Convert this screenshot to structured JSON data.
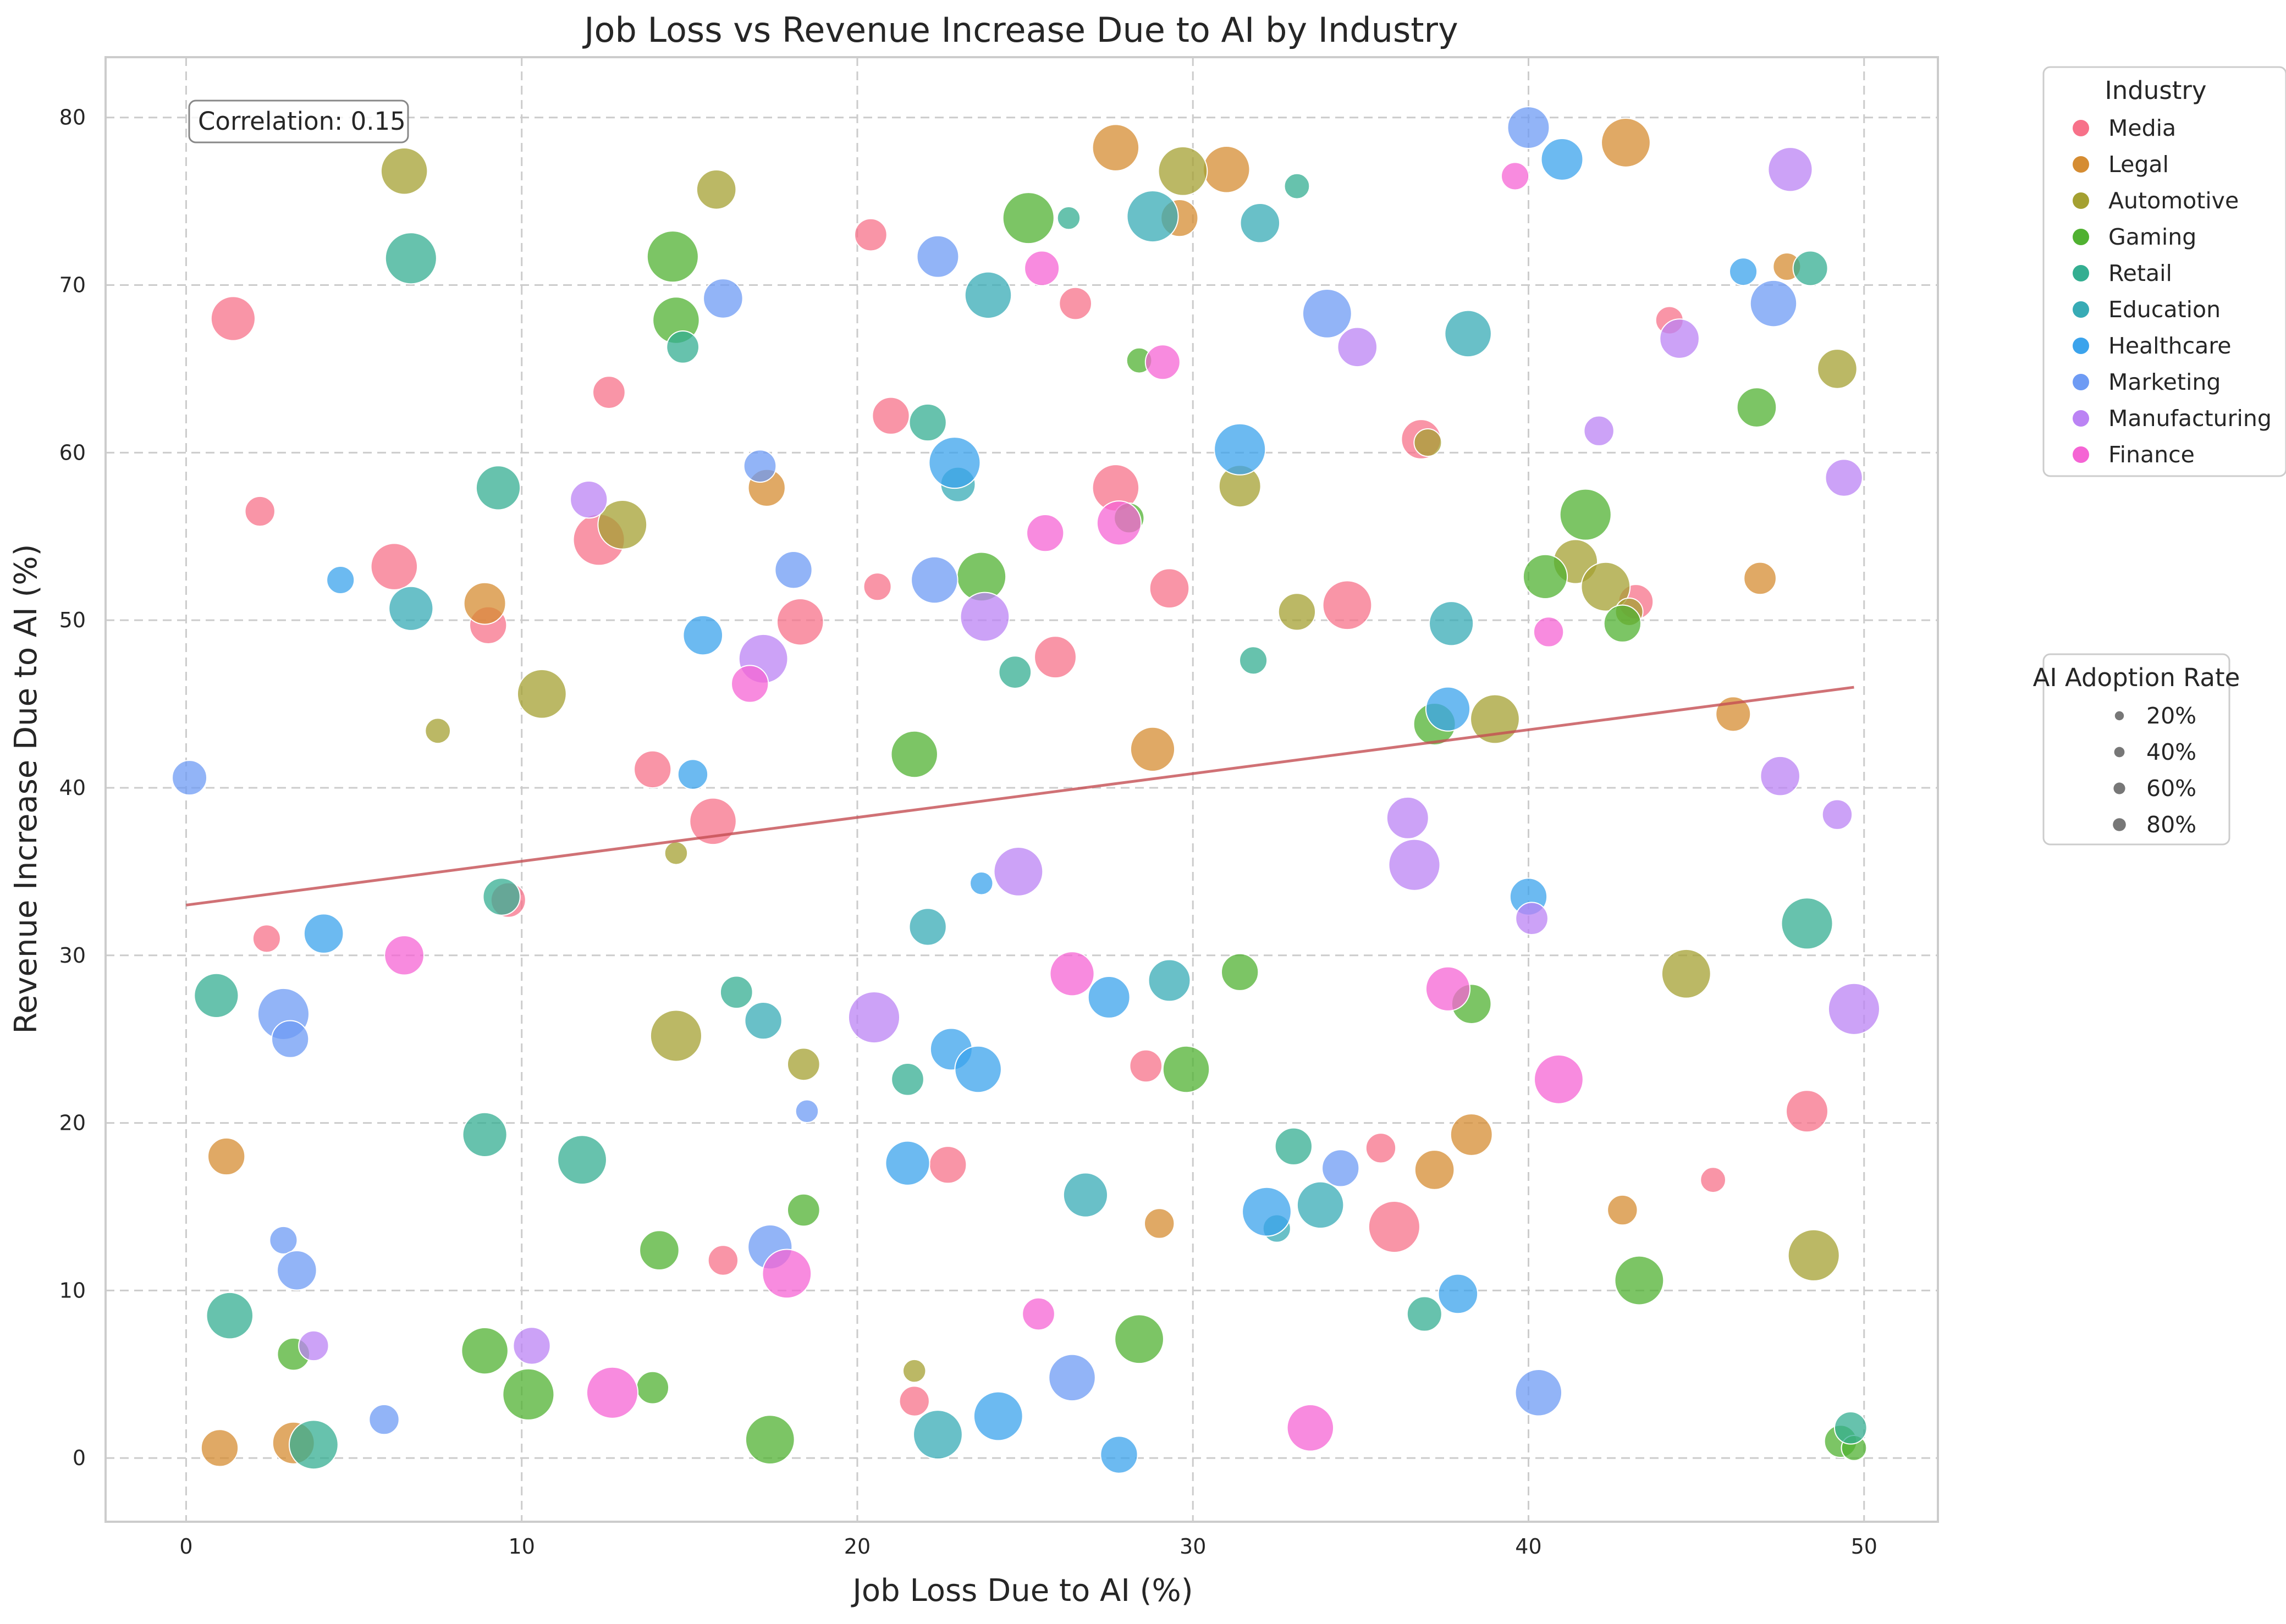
{
  "chart_data": {
    "type": "scatter",
    "title": "Job Loss vs Revenue Increase Due to AI by Industry",
    "xlabel": "Job Loss Due to AI (%)",
    "ylabel": "Revenue Increase Due to AI (%)",
    "xlim": [
      -2.4,
      52.2
    ],
    "ylim": [
      -3.8,
      83.6
    ],
    "xticks": [
      0,
      10,
      20,
      30,
      40,
      50
    ],
    "yticks": [
      0,
      10,
      20,
      30,
      40,
      50,
      60,
      70,
      80
    ],
    "grid": true,
    "annotation": "Correlation: 0.15",
    "trendline": {
      "x": [
        0,
        49.7
      ],
      "y": [
        33.0,
        46.0
      ],
      "color": "#c44e52"
    },
    "legend_industry": {
      "title": "Industry",
      "placement": "outside-top-right",
      "entries": [
        {
          "name": "Media",
          "color": "#f77189"
        },
        {
          "name": "Legal",
          "color": "#d58c32"
        },
        {
          "name": "Automotive",
          "color": "#a4a031"
        },
        {
          "name": "Gaming",
          "color": "#50b131"
        },
        {
          "name": "Retail",
          "color": "#34ae91"
        },
        {
          "name": "Education",
          "color": "#37abb5"
        },
        {
          "name": "Healthcare",
          "color": "#3ba3ec"
        },
        {
          "name": "Marketing",
          "color": "#6e9bf4"
        },
        {
          "name": "Manufacturing",
          "color": "#bb83f4"
        },
        {
          "name": "Finance",
          "color": "#f564d4"
        }
      ]
    },
    "legend_size": {
      "title": "AI Adoption Rate",
      "placement": "outside-right",
      "entries": [
        {
          "label": "20%",
          "value": 20
        },
        {
          "label": "40%",
          "value": 40
        },
        {
          "label": "60%",
          "value": 60
        },
        {
          "label": "80%",
          "value": 80
        }
      ]
    },
    "series": [
      {
        "name": "Media",
        "points": [
          [
            1.4,
            68.0,
            70
          ],
          [
            2.2,
            56.5,
            40
          ],
          [
            6.2,
            53.2,
            75
          ],
          [
            9.0,
            49.7,
            55
          ],
          [
            12.6,
            63.6,
            45
          ],
          [
            12.3,
            54.8,
            85
          ],
          [
            13.9,
            41.1,
            55
          ],
          [
            15.7,
            38.0,
            75
          ],
          [
            18.3,
            49.9,
            75
          ],
          [
            20.4,
            73.0,
            45
          ],
          [
            20.6,
            52.0,
            35
          ],
          [
            21.0,
            62.2,
            55
          ],
          [
            22.7,
            17.5,
            55
          ],
          [
            21.7,
            3.4,
            40
          ],
          [
            25.9,
            47.8,
            65
          ],
          [
            26.5,
            68.9,
            45
          ],
          [
            27.7,
            57.9,
            75
          ],
          [
            29.3,
            51.9,
            60
          ],
          [
            28.6,
            23.4,
            45
          ],
          [
            34.6,
            50.9,
            80
          ],
          [
            36.0,
            13.8,
            85
          ],
          [
            35.6,
            18.5,
            40
          ],
          [
            36.8,
            60.8,
            60
          ],
          [
            44.2,
            67.9,
            35
          ],
          [
            43.2,
            51.1,
            50
          ],
          [
            45.5,
            16.6,
            30
          ],
          [
            48.3,
            20.7,
            65
          ],
          [
            16.0,
            11.8,
            40
          ],
          [
            9.6,
            33.3,
            50
          ],
          [
            2.4,
            31.0,
            35
          ]
        ]
      },
      {
        "name": "Legal",
        "points": [
          [
            1.0,
            0.6,
            55
          ],
          [
            1.2,
            18.0,
            55
          ],
          [
            3.2,
            0.9,
            65
          ],
          [
            8.9,
            51.0,
            65
          ],
          [
            17.3,
            57.9,
            55
          ],
          [
            27.7,
            78.2,
            75
          ],
          [
            29.6,
            74.0,
            55
          ],
          [
            31.0,
            76.9,
            75
          ],
          [
            28.8,
            42.3,
            70
          ],
          [
            29.0,
            14.0,
            40
          ],
          [
            38.3,
            19.3,
            65
          ],
          [
            37.2,
            17.2,
            60
          ],
          [
            42.9,
            78.5,
            80
          ],
          [
            42.8,
            14.8,
            40
          ],
          [
            46.1,
            44.4,
            50
          ],
          [
            46.9,
            52.5,
            45
          ],
          [
            47.7,
            71.1,
            35
          ]
        ]
      },
      {
        "name": "Automotive",
        "points": [
          [
            6.5,
            76.8,
            75
          ],
          [
            7.5,
            43.4,
            30
          ],
          [
            10.6,
            45.6,
            80
          ],
          [
            13.0,
            55.7,
            80
          ],
          [
            14.6,
            36.1,
            25
          ],
          [
            14.6,
            25.2,
            85
          ],
          [
            15.8,
            75.7,
            60
          ],
          [
            18.4,
            23.5,
            45
          ],
          [
            29.7,
            76.8,
            80
          ],
          [
            31.4,
            58.0,
            65
          ],
          [
            33.1,
            50.5,
            55
          ],
          [
            37.0,
            60.6,
            35
          ],
          [
            39.0,
            44.1,
            80
          ],
          [
            41.4,
            53.5,
            70
          ],
          [
            42.3,
            52.0,
            80
          ],
          [
            43.0,
            50.5,
            35
          ],
          [
            44.7,
            28.9,
            80
          ],
          [
            48.5,
            12.1,
            85
          ],
          [
            49.2,
            65.0,
            60
          ],
          [
            21.7,
            5.2,
            25
          ]
        ]
      },
      {
        "name": "Gaming",
        "points": [
          [
            3.2,
            6.2,
            45
          ],
          [
            8.9,
            6.4,
            75
          ],
          [
            10.2,
            3.8,
            85
          ],
          [
            13.9,
            4.2,
            45
          ],
          [
            14.1,
            12.4,
            60
          ],
          [
            14.5,
            71.7,
            85
          ],
          [
            14.6,
            67.9,
            75
          ],
          [
            17.4,
            1.1,
            80
          ],
          [
            18.4,
            14.8,
            45
          ],
          [
            21.7,
            42.0,
            75
          ],
          [
            23.7,
            52.6,
            80
          ],
          [
            25.1,
            74.0,
            85
          ],
          [
            28.4,
            65.5,
            30
          ],
          [
            28.1,
            56.1,
            40
          ],
          [
            28.4,
            7.1,
            80
          ],
          [
            29.8,
            23.2,
            75
          ],
          [
            31.4,
            29.0,
            55
          ],
          [
            37.2,
            43.8,
            65
          ],
          [
            38.3,
            27.1,
            60
          ],
          [
            40.5,
            52.6,
            70
          ],
          [
            41.7,
            56.3,
            85
          ],
          [
            42.8,
            49.8,
            55
          ],
          [
            43.3,
            10.6,
            80
          ],
          [
            46.8,
            62.7,
            60
          ],
          [
            49.3,
            1.0,
            45
          ],
          [
            49.7,
            0.6,
            30
          ]
        ]
      },
      {
        "name": "Retail",
        "points": [
          [
            0.9,
            27.6,
            70
          ],
          [
            1.3,
            8.5,
            75
          ],
          [
            3.8,
            0.8,
            80
          ],
          [
            6.7,
            71.6,
            85
          ],
          [
            8.9,
            19.3,
            70
          ],
          [
            9.3,
            57.9,
            70
          ],
          [
            11.8,
            17.8,
            80
          ],
          [
            9.4,
            33.5,
            55
          ],
          [
            14.8,
            66.3,
            45
          ],
          [
            16.4,
            27.8,
            45
          ],
          [
            21.5,
            22.6,
            45
          ],
          [
            22.1,
            61.8,
            55
          ],
          [
            24.7,
            46.9,
            45
          ],
          [
            26.3,
            74.0,
            25
          ],
          [
            31.8,
            47.6,
            35
          ],
          [
            33.0,
            18.6,
            55
          ],
          [
            33.1,
            75.9,
            30
          ],
          [
            36.9,
            8.6,
            50
          ],
          [
            48.3,
            31.9,
            85
          ],
          [
            48.4,
            71.0,
            50
          ],
          [
            49.6,
            1.8,
            45
          ]
        ]
      },
      {
        "name": "Education",
        "points": [
          [
            6.7,
            50.7,
            70
          ],
          [
            17.2,
            26.1,
            55
          ],
          [
            22.1,
            31.7,
            55
          ],
          [
            23.0,
            58.1,
            50
          ],
          [
            23.9,
            69.4,
            75
          ],
          [
            22.4,
            1.4,
            80
          ],
          [
            26.8,
            15.7,
            70
          ],
          [
            28.8,
            74.1,
            85
          ],
          [
            29.3,
            28.5,
            65
          ],
          [
            32.0,
            73.7,
            60
          ],
          [
            32.5,
            13.7,
            35
          ],
          [
            33.8,
            15.1,
            75
          ],
          [
            37.7,
            49.8,
            70
          ],
          [
            38.2,
            67.1,
            75
          ]
        ]
      },
      {
        "name": "Healthcare",
        "points": [
          [
            4.1,
            31.3,
            60
          ],
          [
            4.6,
            52.4,
            35
          ],
          [
            15.1,
            40.8,
            40
          ],
          [
            15.4,
            49.1,
            60
          ],
          [
            21.5,
            17.6,
            70
          ],
          [
            22.9,
            59.4,
            85
          ],
          [
            22.8,
            24.4,
            65
          ],
          [
            23.6,
            23.2,
            75
          ],
          [
            23.7,
            34.3,
            25
          ],
          [
            24.2,
            2.5,
            80
          ],
          [
            27.5,
            27.5,
            65
          ],
          [
            27.8,
            0.2,
            55
          ],
          [
            31.4,
            60.2,
            85
          ],
          [
            32.2,
            14.7,
            80
          ],
          [
            37.6,
            44.7,
            70
          ],
          [
            37.9,
            9.8,
            60
          ],
          [
            40.0,
            33.5,
            55
          ],
          [
            41.0,
            77.5,
            65
          ],
          [
            46.4,
            70.8,
            35
          ]
        ]
      },
      {
        "name": "Marketing",
        "points": [
          [
            0.1,
            40.6,
            50
          ],
          [
            2.9,
            13.0,
            35
          ],
          [
            2.9,
            26.5,
            85
          ],
          [
            3.1,
            25.0,
            55
          ],
          [
            3.3,
            11.2,
            60
          ],
          [
            5.9,
            2.3,
            40
          ],
          [
            16.0,
            69.2,
            60
          ],
          [
            17.1,
            59.2,
            45
          ],
          [
            17.4,
            12.6,
            70
          ],
          [
            18.1,
            53.0,
            55
          ],
          [
            18.5,
            20.7,
            25
          ],
          [
            22.4,
            71.7,
            65
          ],
          [
            22.3,
            52.4,
            75
          ],
          [
            26.4,
            4.8,
            75
          ],
          [
            34.0,
            68.3,
            80
          ],
          [
            34.4,
            17.3,
            55
          ],
          [
            40.0,
            79.4,
            65
          ],
          [
            40.3,
            3.9,
            75
          ],
          [
            47.3,
            68.9,
            75
          ]
        ]
      },
      {
        "name": "Manufacturing",
        "points": [
          [
            3.8,
            6.7,
            40
          ],
          [
            10.3,
            6.7,
            55
          ],
          [
            12.0,
            57.2,
            55
          ],
          [
            17.2,
            47.7,
            80
          ],
          [
            20.5,
            26.3,
            85
          ],
          [
            23.8,
            50.2,
            80
          ],
          [
            24.8,
            35.0,
            80
          ],
          [
            34.9,
            66.3,
            60
          ],
          [
            36.4,
            38.2,
            65
          ],
          [
            36.6,
            35.4,
            85
          ],
          [
            40.1,
            32.2,
            45
          ],
          [
            42.1,
            61.3,
            40
          ],
          [
            44.5,
            66.8,
            60
          ],
          [
            47.5,
            40.7,
            60
          ],
          [
            47.8,
            76.9,
            70
          ],
          [
            49.2,
            38.4,
            40
          ],
          [
            49.4,
            58.5,
            55
          ],
          [
            49.7,
            26.8,
            85
          ]
        ]
      },
      {
        "name": "Finance",
        "points": [
          [
            6.5,
            30.0,
            60
          ],
          [
            12.7,
            3.9,
            85
          ],
          [
            16.8,
            46.2,
            55
          ],
          [
            17.9,
            11.0,
            80
          ],
          [
            25.4,
            8.6,
            45
          ],
          [
            25.5,
            71.0,
            50
          ],
          [
            25.6,
            55.2,
            55
          ],
          [
            26.4,
            28.9,
            70
          ],
          [
            27.8,
            55.8,
            70
          ],
          [
            29.1,
            65.4,
            50
          ],
          [
            33.5,
            1.8,
            75
          ],
          [
            37.6,
            28.0,
            70
          ],
          [
            39.6,
            76.5,
            35
          ],
          [
            40.6,
            49.3,
            40
          ],
          [
            40.9,
            22.6,
            80
          ]
        ]
      }
    ]
  }
}
